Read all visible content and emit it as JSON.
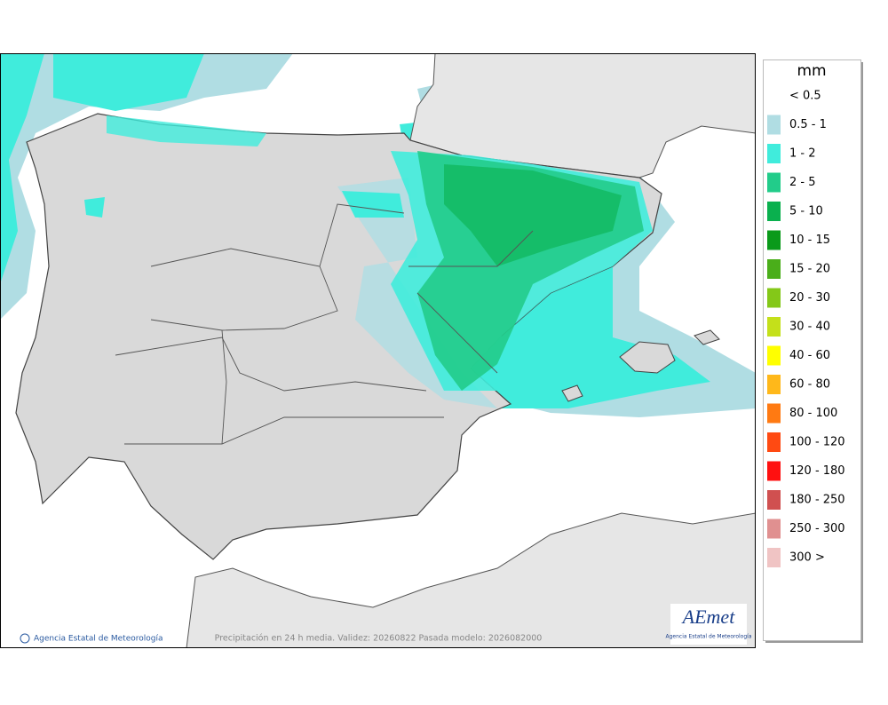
{
  "legend": {
    "title": "mm",
    "items": [
      {
        "label": "< 0.5"
      },
      {
        "label": "0.5 - 1",
        "color": "#b0dde3"
      },
      {
        "label": "1 - 2",
        "color": "#40ecdc"
      },
      {
        "label": "2 - 5",
        "color": "#22cc8a"
      },
      {
        "label": "5 - 10",
        "color": "#0ab04e"
      },
      {
        "label": "10 - 15",
        "color": "#0a9a1a"
      },
      {
        "label": "15 - 20",
        "color": "#4aae1a"
      },
      {
        "label": "20 - 30",
        "color": "#84c818"
      },
      {
        "label": "30 - 40",
        "color": "#c4e01a"
      },
      {
        "label": "40 - 60",
        "color": "#ffff00"
      },
      {
        "label": "60 - 80",
        "color": "#ffb81a"
      },
      {
        "label": "80 - 100",
        "color": "#ff7a12"
      },
      {
        "label": "100 - 120",
        "color": "#ff4a12"
      },
      {
        "label": "120 - 180",
        "color": "#ff1010"
      },
      {
        "label": "180 - 250",
        "color": "#d05050"
      },
      {
        "label": "250 - 300",
        "color": "#e09090"
      },
      {
        "label": "300 >",
        "color": "#f0c4c4"
      }
    ]
  },
  "footer": {
    "credit": "Agencia Estatal de Meteorología",
    "caption": "Precipitación en 24 h media. Validez: 20260822 Pasada modelo: 2026082000"
  },
  "logo": {
    "name": "AEmet",
    "subtitle": "Agencia Estatal de Meteorología"
  }
}
